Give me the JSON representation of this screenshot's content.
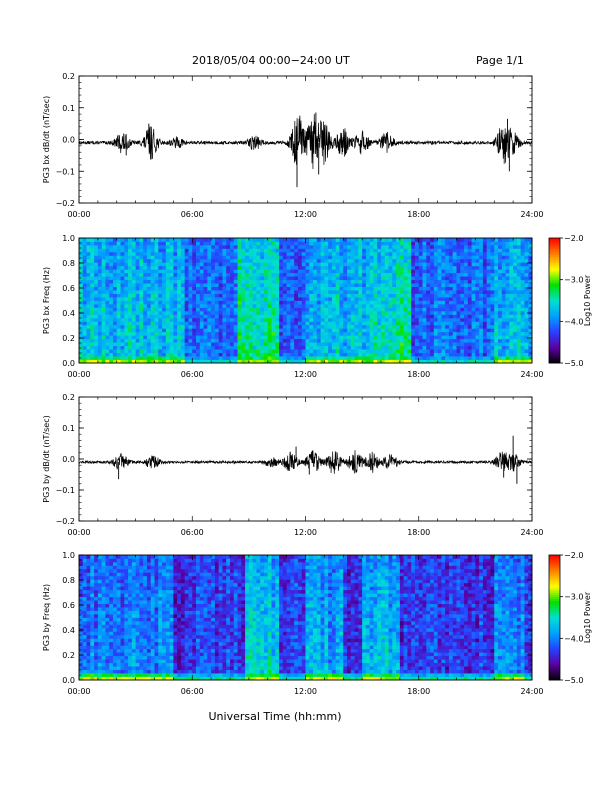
{
  "header": {
    "title": "2018/05/04  00:00−24:00 UT",
    "page": "Page 1/1"
  },
  "xlabel": "Universal Time (hh:mm)",
  "x_ticklabels": [
    "00:00",
    "06:00",
    "12:00",
    "18:00",
    "24:00"
  ],
  "colorbar": {
    "label": "Log10 Power",
    "ticklabels": [
      "−2.0",
      "−3.0",
      "−4.0",
      "−5.0"
    ],
    "range": [
      -5.0,
      -2.0
    ],
    "colors": [
      "#000000",
      "#5a00a0",
      "#2a40ff",
      "#00a0ff",
      "#00e0d0",
      "#00e000",
      "#ffff00",
      "#ff8000",
      "#ff0000"
    ]
  },
  "chart_data": [
    {
      "type": "line",
      "ylabel": "PG3 bx dB/dt (nT/sec)",
      "xlim": [
        0,
        24
      ],
      "ylim": [
        -0.2,
        0.2
      ],
      "ytick_labels": [
        "0.2",
        "0.1",
        "0.0",
        "−0.1",
        "−0.2"
      ],
      "ytick_values": [
        0.2,
        0.1,
        0.0,
        -0.1,
        -0.2
      ],
      "baseline": -0.01,
      "noise_level": 0.005,
      "bursts": [
        {
          "t": 2.3,
          "amp": 0.03
        },
        {
          "t": 3.8,
          "amp": 0.05
        },
        {
          "t": 5.2,
          "amp": 0.015
        },
        {
          "t": 9.3,
          "amp": 0.02
        },
        {
          "t": 11.6,
          "amp": 0.08
        },
        {
          "t": 12.4,
          "amp": 0.085
        },
        {
          "t": 13.0,
          "amp": 0.06
        },
        {
          "t": 14.0,
          "amp": 0.045
        },
        {
          "t": 15.0,
          "amp": 0.035
        },
        {
          "t": 16.3,
          "amp": 0.03
        },
        {
          "t": 22.5,
          "amp": 0.06
        },
        {
          "t": 23.0,
          "amp": 0.03
        }
      ],
      "spikes": [
        {
          "t": 11.55,
          "y": -0.15
        },
        {
          "t": 11.7,
          "y": 0.075
        },
        {
          "t": 12.55,
          "y": 0.085
        },
        {
          "t": 12.7,
          "y": -0.11
        },
        {
          "t": 3.7,
          "y": 0.05
        },
        {
          "t": 22.8,
          "y": -0.1
        },
        {
          "t": 22.7,
          "y": 0.065
        },
        {
          "t": 2.5,
          "y": -0.05
        }
      ]
    },
    {
      "type": "heatmap",
      "ylabel": "PG3 bx Freq (Hz)",
      "xlim": [
        0,
        24
      ],
      "ylim": [
        0.0,
        1.0
      ],
      "ytick_labels": [
        "1.0",
        "0.8",
        "0.6",
        "0.4",
        "0.2",
        "0.0"
      ],
      "ytick_values": [
        1.0,
        0.8,
        0.6,
        0.4,
        0.2,
        0.0
      ],
      "zlim": [
        -5.0,
        -2.0
      ],
      "background_log_power": -4.1,
      "active_bands": [
        {
          "t0": 0.0,
          "t1": 5.5,
          "boost": 0.45
        },
        {
          "t0": 8.5,
          "t1": 10.5,
          "boost": 0.8
        },
        {
          "t0": 12.0,
          "t1": 16.0,
          "boost": 0.45
        },
        {
          "t0": 15.5,
          "t1": 17.5,
          "boost": 0.75
        },
        {
          "t0": 22.0,
          "t1": 24.0,
          "boost": 0.4
        }
      ],
      "low_freq_peak_log_power": -2.7
    },
    {
      "type": "line",
      "ylabel": "PG3 by dB/dt (nT/sec)",
      "xlim": [
        0,
        24
      ],
      "ylim": [
        -0.2,
        0.2
      ],
      "ytick_labels": [
        "0.2",
        "0.1",
        "0.0",
        "−0.1",
        "−0.2"
      ],
      "ytick_values": [
        0.2,
        0.1,
        0.0,
        -0.1,
        -0.2
      ],
      "baseline": -0.01,
      "noise_level": 0.004,
      "bursts": [
        {
          "t": 2.2,
          "amp": 0.025
        },
        {
          "t": 3.9,
          "amp": 0.02
        },
        {
          "t": 10.2,
          "amp": 0.015
        },
        {
          "t": 11.2,
          "amp": 0.03
        },
        {
          "t": 12.4,
          "amp": 0.035
        },
        {
          "t": 13.5,
          "amp": 0.04
        },
        {
          "t": 14.6,
          "amp": 0.035
        },
        {
          "t": 15.5,
          "amp": 0.035
        },
        {
          "t": 16.5,
          "amp": 0.025
        },
        {
          "t": 22.4,
          "amp": 0.03
        },
        {
          "t": 23.0,
          "amp": 0.025
        }
      ],
      "spikes": [
        {
          "t": 11.5,
          "y": 0.04
        },
        {
          "t": 2.1,
          "y": -0.065
        },
        {
          "t": 23.0,
          "y": 0.075
        },
        {
          "t": 23.2,
          "y": -0.08
        },
        {
          "t": 22.5,
          "y": -0.06
        },
        {
          "t": 12.2,
          "y": -0.05
        }
      ]
    },
    {
      "type": "heatmap",
      "ylabel": "PG3 by Freq (Hz)",
      "xlim": [
        0,
        24
      ],
      "ylim": [
        0.0,
        1.0
      ],
      "ytick_labels": [
        "1.0",
        "0.8",
        "0.6",
        "0.4",
        "0.2",
        "0.0"
      ],
      "ytick_values": [
        1.0,
        0.8,
        0.6,
        0.4,
        0.2,
        0.0
      ],
      "zlim": [
        -5.0,
        -2.0
      ],
      "background_log_power": -4.3,
      "active_bands": [
        {
          "t0": 0.0,
          "t1": 5.0,
          "boost": 0.35
        },
        {
          "t0": 8.8,
          "t1": 10.5,
          "boost": 0.75
        },
        {
          "t0": 12.0,
          "t1": 14.0,
          "boost": 0.5
        },
        {
          "t0": 15.0,
          "t1": 17.0,
          "boost": 0.65
        },
        {
          "t0": 22.0,
          "t1": 23.5,
          "boost": 0.35
        }
      ],
      "low_freq_peak_log_power": -2.6
    }
  ]
}
